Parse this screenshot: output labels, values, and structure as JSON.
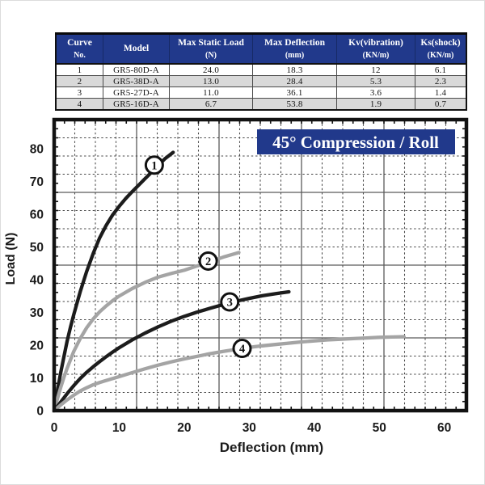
{
  "theme": {
    "navy": "#21398b",
    "row_alt_bg": "#d9d9d9",
    "frame_color": "#121212",
    "grid_minor_color": "#454545",
    "grid_major_color": "#5a5a5a",
    "tick_label_color": "#1b1b1b",
    "curve_black": "#1c1c1c",
    "curve_gray": "#a4a4a4"
  },
  "table": {
    "columns": [
      {
        "line1": "Curve",
        "line2": "No."
      },
      {
        "line1": "Model",
        "line2": ""
      },
      {
        "line1": "Max Static Load",
        "line2": "(N)"
      },
      {
        "line1": "Max Deflection",
        "line2": "(mm)"
      },
      {
        "line1": "Kv(vibration)",
        "line2": "(KN/m)"
      },
      {
        "line1": "Ks(shock)",
        "line2": "(KN/m)"
      }
    ],
    "rows": [
      [
        "1",
        "GR5-80D-A",
        "24.0",
        "18.3",
        "12",
        "6.1"
      ],
      [
        "2",
        "GR5-38D-A",
        "13.0",
        "28.4",
        "5.3",
        "2.3"
      ],
      [
        "3",
        "GR5-27D-A",
        "11.0",
        "36.1",
        "3.6",
        "1.4"
      ],
      [
        "4",
        "GR5-16D-A",
        "6.7",
        "53.8",
        "1.9",
        "0.7"
      ]
    ]
  },
  "chart_data": {
    "type": "line",
    "title": "45° Compression / Roll",
    "title_bg": "#21398b",
    "title_color": "#ffffff",
    "xlabel": "Deflection (mm)",
    "ylabel": "Load (N)",
    "x_ticks": [
      0,
      10,
      20,
      30,
      40,
      50,
      60
    ],
    "y_ticks": [
      0,
      10,
      20,
      30,
      40,
      50,
      60,
      70,
      80
    ],
    "xlim": [
      0,
      63.4
    ],
    "ylim": [
      0,
      88.9
    ],
    "grid": "graph-paper: dashed minor lines, solid major line every 4th cell",
    "legend_position": "numbered circles on curves",
    "series": [
      {
        "name": "1",
        "model": "GR5-80D-A",
        "color": "#1c1c1c",
        "label_at": [
          15.4,
          75
        ],
        "points": [
          [
            0,
            0
          ],
          [
            0.5,
            6
          ],
          [
            1,
            11.5
          ],
          [
            1.5,
            16.5
          ],
          [
            2,
            21.3
          ],
          [
            2.5,
            25.4
          ],
          [
            3,
            29.2
          ],
          [
            4,
            36.3
          ],
          [
            5,
            42.5
          ],
          [
            6,
            48
          ],
          [
            7,
            52.8
          ],
          [
            8,
            56.6
          ],
          [
            9,
            59.8
          ],
          [
            10,
            62.4
          ],
          [
            11,
            64.8
          ],
          [
            12,
            66.9
          ],
          [
            13,
            68.9
          ],
          [
            14,
            70.9
          ],
          [
            15,
            72.9
          ],
          [
            16,
            74.9
          ],
          [
            17,
            76.9
          ],
          [
            18.3,
            78.9
          ]
        ]
      },
      {
        "name": "2",
        "model": "GR5-38D-A",
        "color": "#a4a4a4",
        "label_at": [
          23.7,
          45.7
        ],
        "points": [
          [
            0,
            0
          ],
          [
            0.5,
            3.6
          ],
          [
            1,
            7
          ],
          [
            1.5,
            10.2
          ],
          [
            2,
            13
          ],
          [
            3,
            18
          ],
          [
            4,
            22
          ],
          [
            5,
            25.3
          ],
          [
            6,
            28
          ],
          [
            7,
            30.2
          ],
          [
            8,
            32
          ],
          [
            9,
            33.6
          ],
          [
            10,
            35
          ],
          [
            12,
            37.3
          ],
          [
            14,
            39.2
          ],
          [
            16,
            40.8
          ],
          [
            18,
            41.9
          ],
          [
            20,
            42.9
          ],
          [
            22,
            44.2
          ],
          [
            24,
            45.5
          ],
          [
            26,
            46.9
          ],
          [
            28.4,
            48.3
          ]
        ]
      },
      {
        "name": "3",
        "model": "GR5-27D-A",
        "color": "#1c1c1c",
        "label_at": [
          27,
          33.2
        ],
        "points": [
          [
            0,
            0
          ],
          [
            1,
            2.6
          ],
          [
            2,
            5.2
          ],
          [
            3,
            7.6
          ],
          [
            4,
            9.8
          ],
          [
            5,
            11.7
          ],
          [
            6,
            13.4
          ],
          [
            7,
            15
          ],
          [
            8,
            16.5
          ],
          [
            9,
            17.9
          ],
          [
            10,
            19.2
          ],
          [
            12,
            21.6
          ],
          [
            14,
            23.7
          ],
          [
            16,
            25.6
          ],
          [
            18,
            27.3
          ],
          [
            20,
            28.8
          ],
          [
            22,
            30.1
          ],
          [
            24,
            31.3
          ],
          [
            26,
            32.4
          ],
          [
            28,
            33.4
          ],
          [
            30,
            34.3
          ],
          [
            32,
            35.1
          ],
          [
            34,
            35.7
          ],
          [
            36.1,
            36.3
          ]
        ]
      },
      {
        "name": "4",
        "model": "GR5-16D-A",
        "color": "#a4a4a4",
        "label_at": [
          28.9,
          19
        ],
        "points": [
          [
            0,
            0
          ],
          [
            1,
            1.7
          ],
          [
            2,
            3.3
          ],
          [
            3,
            4.7
          ],
          [
            4,
            6
          ],
          [
            5,
            7
          ],
          [
            6,
            7.9
          ],
          [
            7,
            8.6
          ],
          [
            8,
            9.2
          ],
          [
            9,
            9.8
          ],
          [
            10,
            10.4
          ],
          [
            12,
            11.6
          ],
          [
            14,
            12.8
          ],
          [
            16,
            13.9
          ],
          [
            18,
            14.9
          ],
          [
            20,
            15.8
          ],
          [
            22,
            16.6
          ],
          [
            24,
            17.4
          ],
          [
            26,
            18.1
          ],
          [
            28,
            18.7
          ],
          [
            30,
            19.3
          ],
          [
            32,
            19.8
          ],
          [
            34,
            20.2
          ],
          [
            36,
            20.6
          ],
          [
            38,
            21
          ],
          [
            40,
            21.3
          ],
          [
            42,
            21.6
          ],
          [
            44,
            21.8
          ],
          [
            46,
            22
          ],
          [
            48,
            22.2
          ],
          [
            50,
            22.4
          ],
          [
            52,
            22.5
          ],
          [
            53.8,
            22.6
          ]
        ]
      }
    ]
  }
}
